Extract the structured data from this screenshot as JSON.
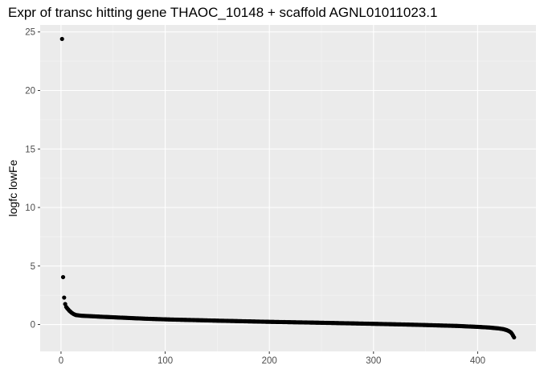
{
  "chart_data": {
    "type": "scatter",
    "title": "Expr of transc hitting gene THAOC_10148 + scaffold AGNL01011023.1",
    "xlabel": "",
    "ylabel": "logfc lowFe",
    "xlim": [
      -20,
      456
    ],
    "ylim": [
      -2.3,
      25.6
    ],
    "x_ticks": [
      0,
      100,
      200,
      300,
      400
    ],
    "y_ticks": [
      0,
      5,
      10,
      15,
      20,
      25
    ],
    "x_tick_labels": [
      "0",
      "100",
      "200",
      "300",
      "400"
    ],
    "y_tick_labels": [
      "0",
      "5",
      "10",
      "15",
      "20",
      "25"
    ],
    "grid": true,
    "background": "#ebebeb",
    "grid_major_color": "#ffffff",
    "grid_minor_color": "#f5f5f5",
    "point_color": "#000000",
    "n_points": 435,
    "points": [
      [
        1,
        24.4
      ],
      [
        2,
        4.05
      ],
      [
        3,
        2.3
      ],
      [
        4,
        1.75
      ],
      [
        5,
        1.5
      ],
      [
        6,
        1.38
      ],
      [
        7,
        1.28
      ],
      [
        8,
        1.18
      ],
      [
        9,
        1.1
      ],
      [
        10,
        1.02
      ],
      [
        11,
        0.96
      ],
      [
        12,
        0.9
      ],
      [
        13,
        0.86
      ],
      [
        14,
        0.82
      ],
      [
        15,
        0.8
      ]
    ],
    "trend": [
      [
        16,
        0.79
      ],
      [
        20,
        0.75
      ],
      [
        40,
        0.66
      ],
      [
        60,
        0.58
      ],
      [
        80,
        0.5
      ],
      [
        100,
        0.44
      ],
      [
        150,
        0.33
      ],
      [
        200,
        0.23
      ],
      [
        250,
        0.15
      ],
      [
        300,
        0.06
      ],
      [
        340,
        -0.02
      ],
      [
        380,
        -0.12
      ],
      [
        400,
        -0.2
      ],
      [
        410,
        -0.25
      ],
      [
        420,
        -0.33
      ],
      [
        425,
        -0.4
      ],
      [
        428,
        -0.48
      ],
      [
        430,
        -0.56
      ],
      [
        432,
        -0.68
      ],
      [
        433,
        -0.8
      ],
      [
        434,
        -0.95
      ],
      [
        435,
        -1.1
      ]
    ]
  }
}
